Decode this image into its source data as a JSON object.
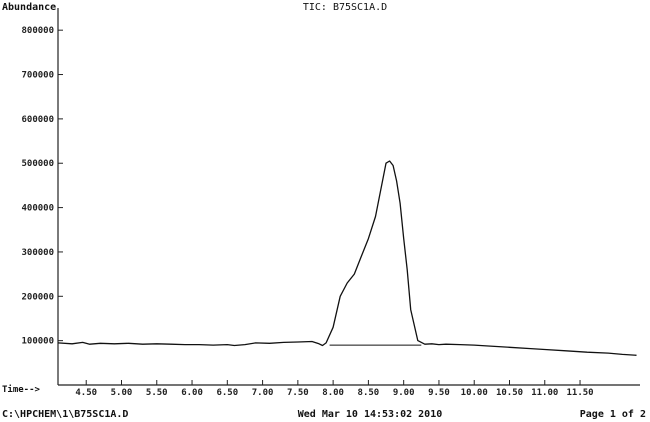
{
  "header": {
    "ylabel": "Abundance",
    "title": "TIC: B75SC1A.D"
  },
  "axis": {
    "xlabel": "Time-->"
  },
  "footer": {
    "path": "C:\\HPCHEM\\1\\B75SC1A.D",
    "datetime": "Wed Mar 10 14:53:02 2010",
    "page": "Page 1 of 2"
  },
  "chart_data": {
    "type": "line",
    "title": "TIC: B75SC1A.D",
    "xlabel": "Time-->",
    "ylabel": "Abundance",
    "xlim": [
      4.1,
      12.35
    ],
    "ylim": [
      0,
      850000
    ],
    "xticks": [
      "4.50",
      "5.00",
      "5.50",
      "6.00",
      "6.50",
      "7.00",
      "7.50",
      "8.00",
      "8.50",
      "9.00",
      "9.50",
      "10.00",
      "10.50",
      "11.00",
      "11.50"
    ],
    "yticks": [
      "100000",
      "200000",
      "300000",
      "400000",
      "500000",
      "600000",
      "700000",
      "800000"
    ],
    "grid": false,
    "series": [
      {
        "x": [
          4.1,
          4.3,
          4.45,
          4.55,
          4.7,
          4.9,
          5.1,
          5.3,
          5.5,
          5.7,
          5.9,
          6.1,
          6.3,
          6.5,
          6.6,
          6.75,
          6.9,
          7.1,
          7.3,
          7.5,
          7.7,
          7.8,
          7.85,
          7.9,
          8.0,
          8.1,
          8.2,
          8.3,
          8.4,
          8.5,
          8.6,
          8.7,
          8.75,
          8.8,
          8.85,
          8.9,
          8.95,
          9.0,
          9.05,
          9.1,
          9.2,
          9.3,
          9.4,
          9.5,
          9.6,
          9.8,
          10.0,
          10.2,
          10.5,
          10.8,
          11.0,
          11.3,
          11.6,
          11.9,
          12.1,
          12.3
        ],
        "y": [
          95000,
          93000,
          96000,
          92000,
          94000,
          93000,
          94000,
          92000,
          93000,
          92000,
          91000,
          91000,
          90000,
          91000,
          89000,
          91000,
          95000,
          94000,
          96000,
          97000,
          98000,
          93000,
          89000,
          95000,
          130000,
          200000,
          230000,
          250000,
          290000,
          330000,
          380000,
          460000,
          500000,
          505000,
          495000,
          460000,
          410000,
          330000,
          260000,
          170000,
          100000,
          92000,
          93000,
          91000,
          92000,
          91000,
          90000,
          88000,
          85000,
          82000,
          80000,
          77000,
          74000,
          72000,
          69000,
          67000
        ]
      },
      {
        "x": [
          7.95,
          9.25
        ],
        "y": [
          90000,
          90000
        ]
      }
    ]
  }
}
